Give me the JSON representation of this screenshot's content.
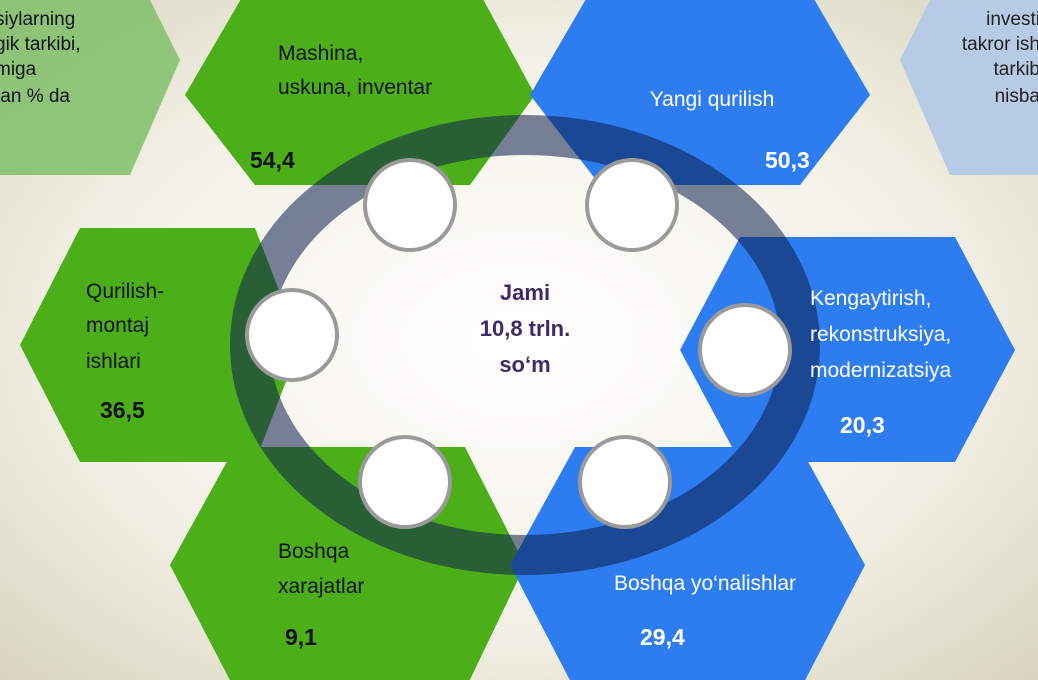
{
  "corner_left": {
    "lines": [
      "siylarning",
      "gik tarkibi,",
      "miga",
      "tan % da"
    ]
  },
  "corner_right": {
    "lines": [
      "investi",
      "takror ish",
      "tarkib",
      "nisba"
    ]
  },
  "center": {
    "lines": [
      "Jami",
      "10,8 trln.",
      "so‘m"
    ]
  },
  "hexagons": [
    {
      "label": [
        "Mashina,",
        "uskuna, inventar"
      ],
      "value": "54,4"
    },
    {
      "label": [
        "Yangi qurilish"
      ],
      "value": "50,3"
    },
    {
      "label": [
        "Qurilish-",
        "montaj",
        "ishlari"
      ],
      "value": "36,5"
    },
    {
      "label": [
        "Kengaytirish,",
        "rekonstruksiya,",
        "modernizatsiya"
      ],
      "value": "20,3"
    },
    {
      "label": [
        "Boshqa",
        "xarajatlar"
      ],
      "value": "9,1"
    },
    {
      "label": [
        "Boshqa yo‘nalishlar"
      ],
      "value": "29,4"
    }
  ]
}
